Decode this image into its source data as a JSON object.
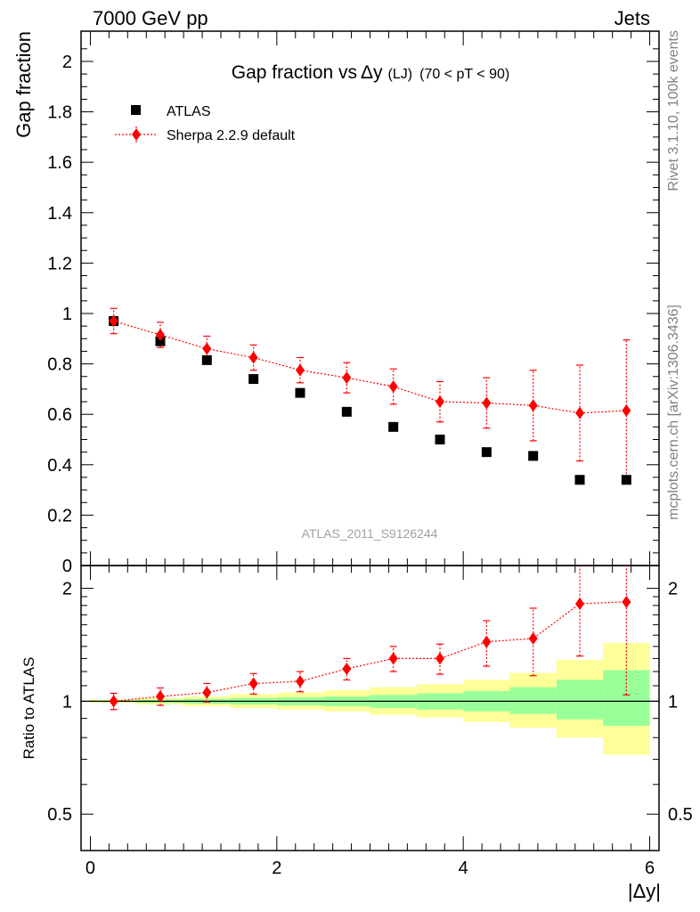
{
  "header": {
    "left": "7000 GeV pp",
    "right": "Jets"
  },
  "side_labels": {
    "upper": "Rivet 3.1.10,  100k events",
    "lower": "mcplots.cern.ch [arXiv:1306.3436]"
  },
  "chart_data": [
    {
      "type": "scatter",
      "title_main": "Gap fraction vs",
      "title_delta": "Δy",
      "title_sub": "(LJ)",
      "title_range": "(70 < pT <  90)",
      "ylabel": "Gap fraction",
      "watermark": "ATLAS_2011_S9126244",
      "xlim": [
        -0.1,
        6.1
      ],
      "ylim": [
        0,
        2.12
      ],
      "yticks": [
        0,
        0.2,
        0.4,
        0.6,
        0.8,
        1,
        1.2,
        1.4,
        1.6,
        1.8,
        2
      ],
      "ytick_labels": [
        "0",
        "0.2",
        "0.4",
        "0.6",
        "0.8",
        "1",
        "1.2",
        "1.4",
        "1.6",
        "1.8",
        "2"
      ],
      "legend_position": "top-left",
      "series": [
        {
          "name": "ATLAS",
          "marker": "square",
          "color": "#000000",
          "x": [
            0.25,
            0.75,
            1.25,
            1.75,
            2.25,
            2.75,
            3.25,
            3.75,
            4.25,
            4.75,
            5.25,
            5.75
          ],
          "y": [
            0.97,
            0.89,
            0.815,
            0.74,
            0.685,
            0.61,
            0.55,
            0.5,
            0.45,
            0.435,
            0.34,
            0.34
          ]
        },
        {
          "name": "Sherpa 2.2.9 default",
          "marker": "diamond",
          "color": "#ff0000",
          "line": "dotted",
          "x": [
            0.25,
            0.75,
            1.25,
            1.75,
            2.25,
            2.75,
            3.25,
            3.75,
            4.25,
            4.75,
            5.25,
            5.75
          ],
          "y": [
            0.97,
            0.915,
            0.86,
            0.825,
            0.775,
            0.745,
            0.71,
            0.65,
            0.645,
            0.635,
            0.605,
            0.615
          ],
          "yerr": [
            0.05,
            0.05,
            0.05,
            0.05,
            0.05,
            0.06,
            0.07,
            0.08,
            0.1,
            0.14,
            0.19,
            0.28
          ]
        }
      ]
    },
    {
      "type": "scatter",
      "ylabel": "Ratio to ATLAS",
      "xlabel": "|Δy|",
      "xlim": [
        -0.1,
        6.1
      ],
      "ylim": [
        0.4,
        2.3
      ],
      "log_y": true,
      "xticks": [
        0,
        2,
        4,
        6
      ],
      "xtick_labels": [
        "0",
        "2",
        "4",
        "6"
      ],
      "yticks": [
        0.5,
        1,
        2
      ],
      "ytick_labels": [
        "0.5",
        "1",
        "2"
      ],
      "bands": {
        "x_edges": [
          0,
          0.5,
          1,
          1.5,
          2,
          2.5,
          3,
          3.5,
          4,
          4.5,
          5,
          5.5,
          6
        ],
        "inner_color": "#99ff99",
        "outer_color": "#ffff99",
        "inner": [
          [
            0.995,
            1.005
          ],
          [
            0.99,
            1.01
          ],
          [
            0.985,
            1.015
          ],
          [
            0.98,
            1.02
          ],
          [
            0.975,
            1.025
          ],
          [
            0.97,
            1.03
          ],
          [
            0.96,
            1.04
          ],
          [
            0.95,
            1.05
          ],
          [
            0.94,
            1.065
          ],
          [
            0.925,
            1.09
          ],
          [
            0.895,
            1.14
          ],
          [
            0.86,
            1.21
          ]
        ],
        "outer": [
          [
            0.99,
            1.01
          ],
          [
            0.98,
            1.02
          ],
          [
            0.97,
            1.03
          ],
          [
            0.96,
            1.045
          ],
          [
            0.95,
            1.055
          ],
          [
            0.94,
            1.07
          ],
          [
            0.92,
            1.09
          ],
          [
            0.905,
            1.11
          ],
          [
            0.88,
            1.14
          ],
          [
            0.85,
            1.19
          ],
          [
            0.8,
            1.29
          ],
          [
            0.72,
            1.43
          ]
        ]
      },
      "series": [
        {
          "name": "Sherpa 2.2.9 default",
          "marker": "diamond",
          "color": "#ff0000",
          "line": "dotted",
          "x": [
            0.25,
            0.75,
            1.25,
            1.75,
            2.25,
            2.75,
            3.25,
            3.75,
            4.25,
            4.75,
            5.25,
            5.75
          ],
          "y": [
            1.0,
            1.03,
            1.055,
            1.115,
            1.13,
            1.22,
            1.3,
            1.3,
            1.44,
            1.47,
            1.82,
            1.84
          ],
          "yerr": [
            0.05,
            0.055,
            0.06,
            0.07,
            0.07,
            0.08,
            0.1,
            0.12,
            0.2,
            0.3,
            0.5,
            0.8
          ]
        }
      ]
    }
  ]
}
